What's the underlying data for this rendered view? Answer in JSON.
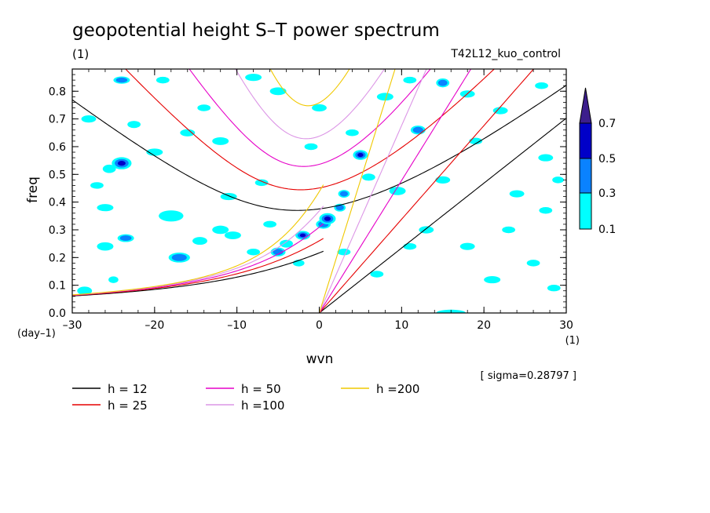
{
  "chart_data": {
    "type": "heatmap",
    "title": "geopotential height S–T power spectrum",
    "units_label": "(1)",
    "run_label": "T42L12_kuo_control",
    "xlabel": "wvn",
    "ylabel": "freq",
    "x_unit_label": "(1)",
    "y_unit_label": "(day–1)",
    "xlim": [
      -30,
      30
    ],
    "ylim": [
      0,
      0.88
    ],
    "x_ticks": [
      -30,
      -20,
      -10,
      0,
      10,
      20,
      30
    ],
    "x_tick_labels": [
      "–30",
      "–20",
      "–10",
      "0",
      "10",
      "20",
      "30"
    ],
    "y_ticks": [
      0.0,
      0.1,
      0.2,
      0.3,
      0.4,
      0.5,
      0.6,
      0.7,
      0.8
    ],
    "y_tick_labels": [
      "0.0",
      "0.1",
      "0.2",
      "0.3",
      "0.4",
      "0.5",
      "0.6",
      "0.7",
      "0.8"
    ],
    "sigma_label": "[ sigma=0.28797 ]",
    "colorbar": {
      "levels": [
        0.1,
        0.3,
        0.5,
        0.7
      ],
      "level_labels": [
        "0.1",
        "0.3",
        "0.5",
        "0.7"
      ],
      "colors": [
        "#00ffff",
        "#0a82ff",
        "#0000c8",
        "#3c1e8c"
      ]
    },
    "series": [
      {
        "name": "h = 12",
        "h": 12,
        "color": "#000000"
      },
      {
        "name": "h = 25",
        "h": 25,
        "color": "#e60000"
      },
      {
        "name": "h = 50",
        "h": 50,
        "color": "#e600c8"
      },
      {
        "name": "h =100",
        "h": 100,
        "color": "#dc96e6"
      },
      {
        "name": "h =200",
        "h": 200,
        "color": "#f0c800"
      }
    ],
    "blobs": [
      [
        -28.5,
        0.08,
        0.9,
        0.015,
        1
      ],
      [
        -26,
        0.24,
        1.0,
        0.015,
        1
      ],
      [
        -25,
        0.12,
        0.6,
        0.012,
        1
      ],
      [
        -23.5,
        0.27,
        1.0,
        0.014,
        2
      ],
      [
        -24,
        0.54,
        1.2,
        0.022,
        3
      ],
      [
        -25.5,
        0.52,
        0.8,
        0.015,
        1
      ],
      [
        -18,
        0.35,
        1.5,
        0.02,
        1
      ],
      [
        -17,
        0.2,
        1.3,
        0.018,
        2
      ],
      [
        -14.5,
        0.26,
        0.9,
        0.014,
        1
      ],
      [
        -12,
        0.3,
        1.0,
        0.015,
        1
      ],
      [
        -10.5,
        0.28,
        1.0,
        0.014,
        1
      ],
      [
        -8,
        0.22,
        0.8,
        0.012,
        1
      ],
      [
        -5,
        0.22,
        0.9,
        0.016,
        2
      ],
      [
        -4,
        0.25,
        0.8,
        0.014,
        1
      ],
      [
        -2,
        0.28,
        0.9,
        0.016,
        3
      ],
      [
        -2.5,
        0.18,
        0.7,
        0.012,
        1
      ],
      [
        0.5,
        0.32,
        0.9,
        0.016,
        2
      ],
      [
        1,
        0.34,
        1.0,
        0.02,
        3
      ],
      [
        2.5,
        0.38,
        0.7,
        0.014,
        2
      ],
      [
        3,
        0.43,
        0.7,
        0.014,
        2
      ],
      [
        5,
        0.57,
        0.9,
        0.018,
        3
      ],
      [
        6,
        0.49,
        0.8,
        0.013,
        1
      ],
      [
        9.5,
        0.44,
        1.0,
        0.015,
        1
      ],
      [
        12,
        0.66,
        0.9,
        0.016,
        2
      ],
      [
        15,
        0.83,
        0.8,
        0.016,
        2
      ],
      [
        13,
        0.3,
        0.9,
        0.013,
        1
      ],
      [
        18,
        0.24,
        0.9,
        0.013,
        1
      ],
      [
        21,
        0.12,
        1.0,
        0.013,
        1
      ],
      [
        24,
        0.43,
        0.9,
        0.013,
        1
      ],
      [
        26,
        0.18,
        0.8,
        0.012,
        1
      ],
      [
        27.5,
        0.56,
        0.9,
        0.013,
        1
      ],
      [
        28.5,
        0.09,
        0.8,
        0.012,
        1
      ],
      [
        16,
        0.0,
        1.8,
        0.012,
        1
      ],
      [
        -12,
        0.62,
        1.0,
        0.014,
        1
      ],
      [
        -16,
        0.65,
        0.9,
        0.013,
        1
      ],
      [
        -22.5,
        0.68,
        0.8,
        0.013,
        1
      ],
      [
        -28,
        0.7,
        0.9,
        0.013,
        1
      ],
      [
        -5,
        0.8,
        1.0,
        0.014,
        1
      ],
      [
        -8,
        0.85,
        1.0,
        0.013,
        1
      ],
      [
        0,
        0.74,
        0.9,
        0.013,
        1
      ],
      [
        8,
        0.78,
        1.0,
        0.014,
        1
      ],
      [
        11,
        0.84,
        0.8,
        0.012,
        1
      ],
      [
        18,
        0.79,
        0.9,
        0.013,
        1
      ],
      [
        22,
        0.73,
        0.9,
        0.013,
        1
      ],
      [
        27,
        0.82,
        0.8,
        0.012,
        1
      ],
      [
        -19,
        0.84,
        0.8,
        0.012,
        1
      ],
      [
        -24,
        0.84,
        1.0,
        0.013,
        2
      ],
      [
        -26,
        0.38,
        1.0,
        0.013,
        1
      ],
      [
        -20,
        0.58,
        1.0,
        0.013,
        1
      ],
      [
        -11,
        0.42,
        1.0,
        0.013,
        1
      ],
      [
        -6,
        0.32,
        0.8,
        0.012,
        1
      ],
      [
        -7,
        0.47,
        0.8,
        0.012,
        1
      ],
      [
        3,
        0.22,
        0.8,
        0.012,
        1
      ],
      [
        7,
        0.14,
        0.8,
        0.012,
        1
      ],
      [
        11,
        0.24,
        0.8,
        0.012,
        1
      ],
      [
        15,
        0.48,
        0.9,
        0.013,
        1
      ],
      [
        19,
        0.62,
        0.8,
        0.012,
        1
      ],
      [
        23,
        0.3,
        0.8,
        0.012,
        1
      ],
      [
        27.5,
        0.37,
        0.8,
        0.012,
        1
      ],
      [
        29,
        0.48,
        0.7,
        0.012,
        1
      ],
      [
        -1,
        0.6,
        0.8,
        0.012,
        1
      ],
      [
        4,
        0.65,
        0.8,
        0.012,
        1
      ],
      [
        -14,
        0.74,
        0.8,
        0.012,
        1
      ],
      [
        -27,
        0.46,
        0.8,
        0.012,
        1
      ]
    ]
  }
}
